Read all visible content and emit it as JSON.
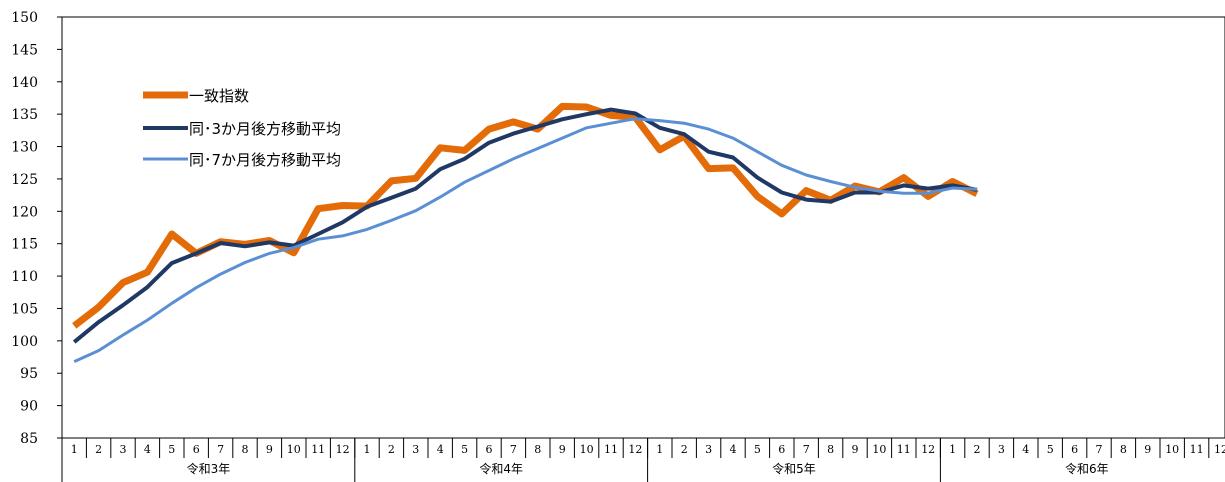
{
  "chart_data": {
    "type": "line",
    "ylim": [
      85,
      150
    ],
    "y_ticks": [
      85,
      90,
      95,
      100,
      105,
      110,
      115,
      120,
      125,
      130,
      135,
      140,
      145,
      150
    ],
    "years": [
      "令和3年",
      "令和4年",
      "令和5年",
      "令和6年"
    ],
    "months": [
      "1",
      "2",
      "3",
      "4",
      "5",
      "6",
      "7",
      "8",
      "9",
      "10",
      "11",
      "12"
    ],
    "grid": false,
    "legend_position": "top-left",
    "series": [
      {
        "name": "一致指数",
        "color": "#E36C09",
        "width": 7,
        "values": [
          102.3,
          105.2,
          109.0,
          110.6,
          116.5,
          113.5,
          115.3,
          114.9,
          115.5,
          113.6,
          120.4,
          120.9,
          120.8,
          124.7,
          125.1,
          129.8,
          129.4,
          132.7,
          133.8,
          132.7,
          136.2,
          136.1,
          134.8,
          134.5,
          129.5,
          131.6,
          126.6,
          126.7,
          122.3,
          119.6,
          123.2,
          121.7,
          123.9,
          123.0,
          125.2,
          122.3,
          124.6,
          122.7
        ]
      },
      {
        "name": "同･3か月後方移動平均",
        "color": "#1F3864",
        "width": 4,
        "values": [
          99.8,
          102.9,
          105.5,
          108.3,
          112.0,
          113.5,
          115.1,
          114.6,
          115.2,
          114.7,
          116.5,
          118.3,
          120.7,
          122.1,
          123.5,
          126.5,
          128.1,
          130.6,
          132.0,
          133.1,
          134.2,
          135.0,
          135.7,
          135.1,
          132.9,
          131.9,
          129.2,
          128.3,
          125.2,
          122.9,
          121.8,
          121.5,
          122.9,
          122.9,
          124.0,
          123.5,
          124.0,
          123.3
        ]
      },
      {
        "name": "同･7か月後方移動平均",
        "color": "#5B8FD4",
        "width": 3,
        "values": [
          96.8,
          98.5,
          100.9,
          103.2,
          105.8,
          108.2,
          110.3,
          112.1,
          113.5,
          114.4,
          115.7,
          116.2,
          117.2,
          118.6,
          120.1,
          122.2,
          124.5,
          126.3,
          128.1,
          129.7,
          131.3,
          132.9,
          133.6,
          134.3,
          134.0,
          133.6,
          132.7,
          131.3,
          129.2,
          127.1,
          125.6,
          124.6,
          123.7,
          123.1,
          122.8,
          122.8,
          123.6,
          123.4
        ]
      }
    ]
  }
}
